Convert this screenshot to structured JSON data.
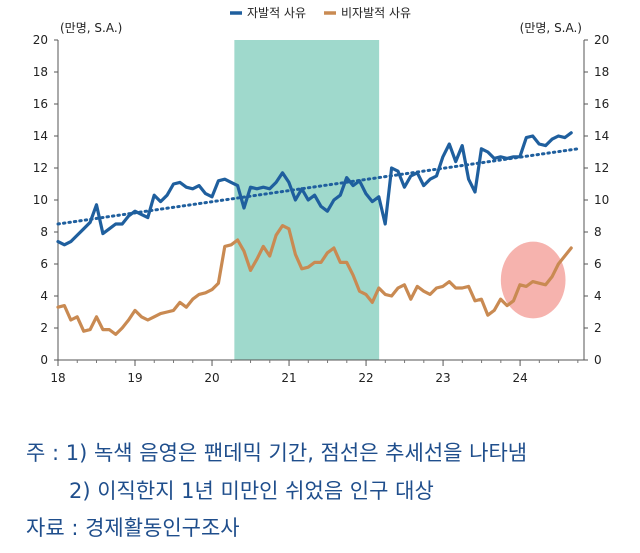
{
  "chart_data": {
    "type": "line",
    "legend": {
      "placement": "top-center"
    },
    "y_unit_left": "(만명, S.A.)",
    "y_unit_right": "(만명, S.A.)",
    "ylim": [
      0,
      20
    ],
    "yticks": [
      0,
      2,
      4,
      6,
      8,
      10,
      12,
      14,
      16,
      18,
      20
    ],
    "xlim": [
      18,
      24.83
    ],
    "xticks": [
      "18",
      "19",
      "20",
      "21",
      "22",
      "23",
      "24"
    ],
    "shaded_period": {
      "start": 20.29,
      "end": 22.17,
      "color": "#9fd9cc"
    },
    "highlight_ellipse": {
      "center": [
        24.17,
        5.0
      ],
      "rx": 0.42,
      "ry": 2.4,
      "color": "#f4a6a0"
    },
    "trend": {
      "from": [
        18,
        8.5
      ],
      "to": [
        24.75,
        13.2
      ],
      "color": "#1f5f9e"
    },
    "series": [
      {
        "name": "자발적 사유",
        "color": "#1f5f9e",
        "start": 18.0,
        "step_years": 0.0833,
        "values": [
          7.4,
          7.2,
          7.4,
          7.8,
          8.2,
          8.6,
          9.7,
          7.9,
          8.2,
          8.5,
          8.5,
          9.0,
          9.3,
          9.1,
          8.9,
          10.3,
          9.9,
          10.3,
          11.0,
          11.1,
          10.8,
          10.7,
          10.9,
          10.4,
          10.2,
          11.2,
          11.3,
          11.1,
          10.9,
          9.5,
          10.8,
          10.7,
          10.8,
          10.7,
          11.1,
          11.7,
          11.1,
          10.0,
          10.7,
          10.0,
          10.3,
          9.6,
          9.3,
          10.0,
          10.3,
          11.4,
          10.9,
          11.2,
          10.4,
          9.9,
          10.2,
          8.5,
          12.0,
          11.8,
          10.8,
          11.5,
          11.7,
          10.9,
          11.3,
          11.5,
          12.7,
          13.5,
          12.4,
          13.4,
          11.3,
          10.5,
          13.2,
          13.0,
          12.6,
          12.7,
          12.6,
          12.7,
          12.7,
          13.9,
          14.0,
          13.5,
          13.4,
          13.8,
          14.0,
          13.9,
          14.2
        ]
      },
      {
        "name": "비자발적 사유",
        "color": "#c98a52",
        "start": 18.0,
        "step_years": 0.0833,
        "values": [
          3.3,
          3.4,
          2.5,
          2.7,
          1.8,
          1.9,
          2.7,
          1.9,
          1.9,
          1.6,
          2.0,
          2.5,
          3.1,
          2.7,
          2.5,
          2.7,
          2.9,
          3.0,
          3.1,
          3.6,
          3.3,
          3.8,
          4.1,
          4.2,
          4.4,
          4.8,
          7.1,
          7.2,
          7.5,
          6.8,
          5.6,
          6.3,
          7.1,
          6.5,
          7.8,
          8.4,
          8.2,
          6.6,
          5.7,
          5.8,
          6.1,
          6.1,
          6.7,
          7.0,
          6.1,
          6.1,
          5.3,
          4.3,
          4.1,
          3.6,
          4.5,
          4.1,
          4.0,
          4.5,
          4.7,
          3.8,
          4.6,
          4.3,
          4.1,
          4.5,
          4.6,
          4.9,
          4.5,
          4.5,
          4.6,
          3.7,
          3.8,
          2.8,
          3.1,
          3.8,
          3.4,
          3.7,
          4.7,
          4.6,
          4.9,
          4.8,
          4.7,
          5.2,
          6.0,
          6.5,
          7.0
        ]
      }
    ]
  },
  "notes": {
    "note1": "주 : 1) 녹색 음영은 팬데믹 기간, 점선은 추세선을 나타냄",
    "note2": "2) 이직한지 1년 미만인 쉬었음 인구 대상",
    "source": "자료 : 경제활동인구조사"
  }
}
